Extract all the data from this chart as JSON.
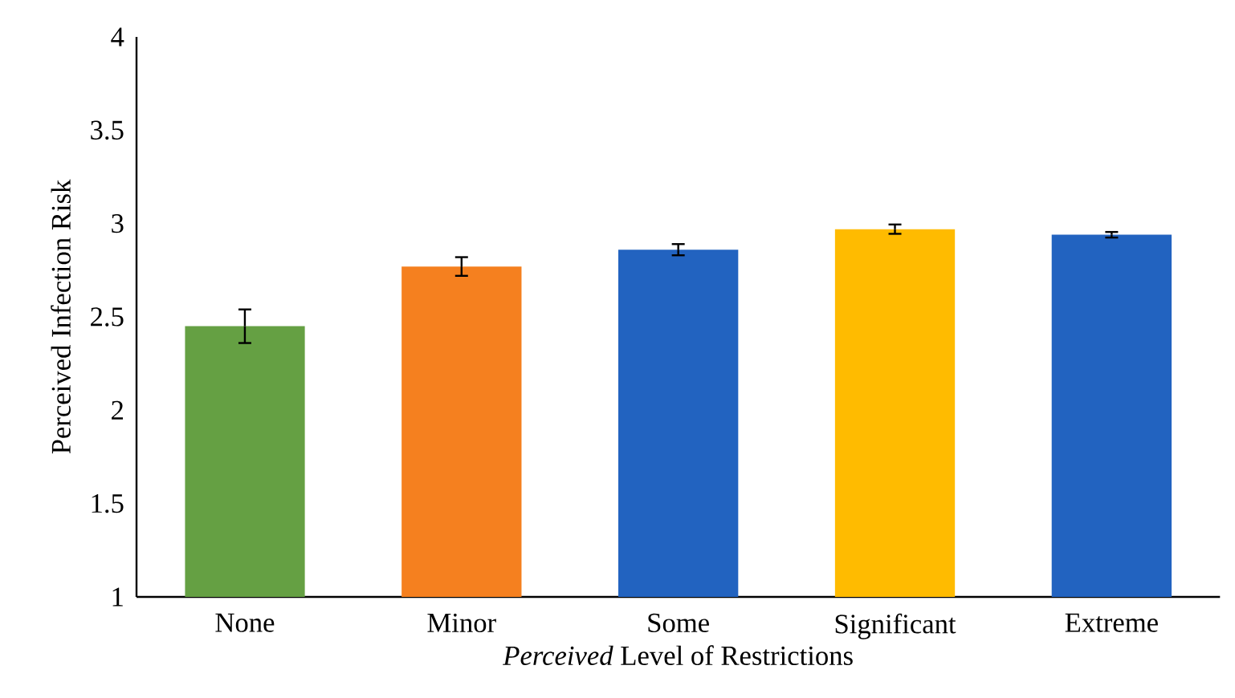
{
  "chart_data": {
    "type": "bar",
    "xlabel": "*Perceived* Level of Restrictions",
    "ylabel": "Perceived Infection Risk",
    "categories": [
      "None",
      "Minor",
      "Some",
      "Significant",
      "Extreme"
    ],
    "values": [
      2.45,
      2.77,
      2.86,
      2.97,
      2.94
    ],
    "errors": [
      0.09,
      0.05,
      0.03,
      0.025,
      0.015
    ],
    "colors": [
      "#65a043",
      "#f5801f",
      "#2263c0",
      "#ffbb00",
      "#2263c0"
    ],
    "ylim": [
      1,
      4
    ],
    "yticks": [
      1,
      1.5,
      2,
      2.5,
      3,
      3.5,
      4
    ],
    "grid": false
  }
}
